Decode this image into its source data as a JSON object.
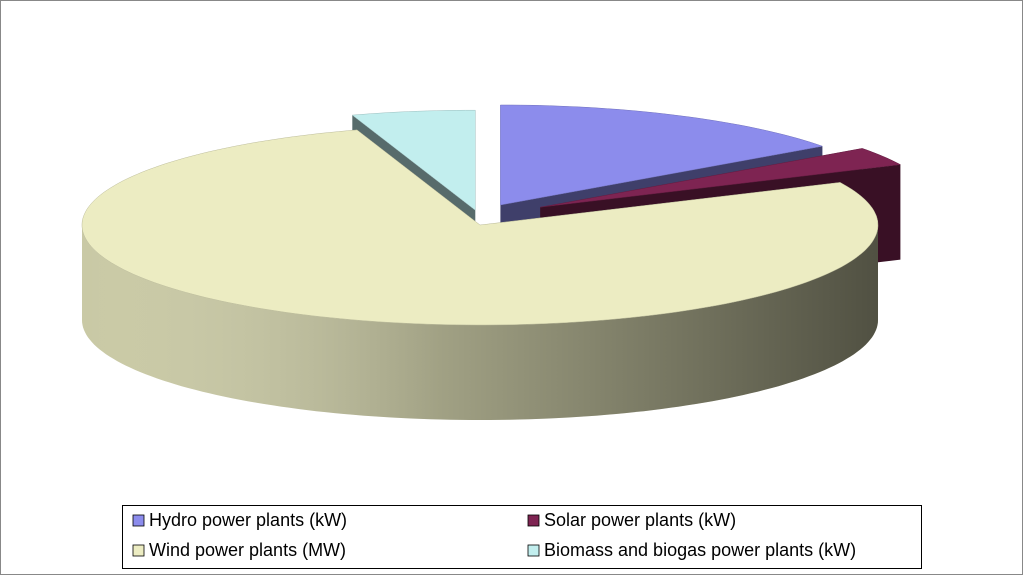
{
  "chart_data": {
    "type": "pie",
    "categories": [
      "Hydro power plants (kW)",
      "Solar power plants (kW)",
      "Wind power plants (MW)",
      "Biomass and biogas power plants (kW)"
    ],
    "values": [
      15,
      3,
      77,
      5
    ],
    "colors": [
      "#8c8cec",
      "#7e2452",
      "#ececc2",
      "#c2eeee"
    ],
    "legend": "bottom"
  }
}
